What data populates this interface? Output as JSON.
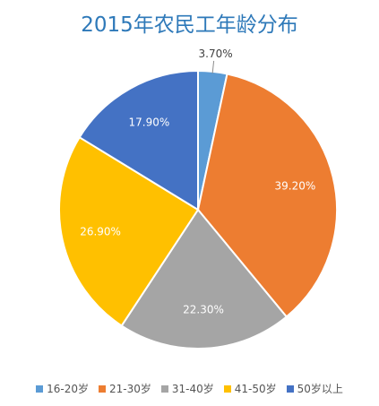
{
  "chart_data": {
    "type": "pie",
    "title": "2015年农民工年龄分布",
    "categories": [
      "16-20岁",
      "21-30岁",
      "31-40岁",
      "41-50岁",
      "50岁以上"
    ],
    "values": [
      3.7,
      39.2,
      22.3,
      26.9,
      17.9
    ],
    "value_labels": [
      "3.70%",
      "39.20%",
      "22.30%",
      "26.90%",
      "17.90%"
    ],
    "colors": [
      "#5b9bd5",
      "#ed7d31",
      "#a5a5a5",
      "#ffc000",
      "#4472c4"
    ],
    "legend_position": "bottom",
    "start_angle": "12 o'clock",
    "direction": "clockwise"
  }
}
